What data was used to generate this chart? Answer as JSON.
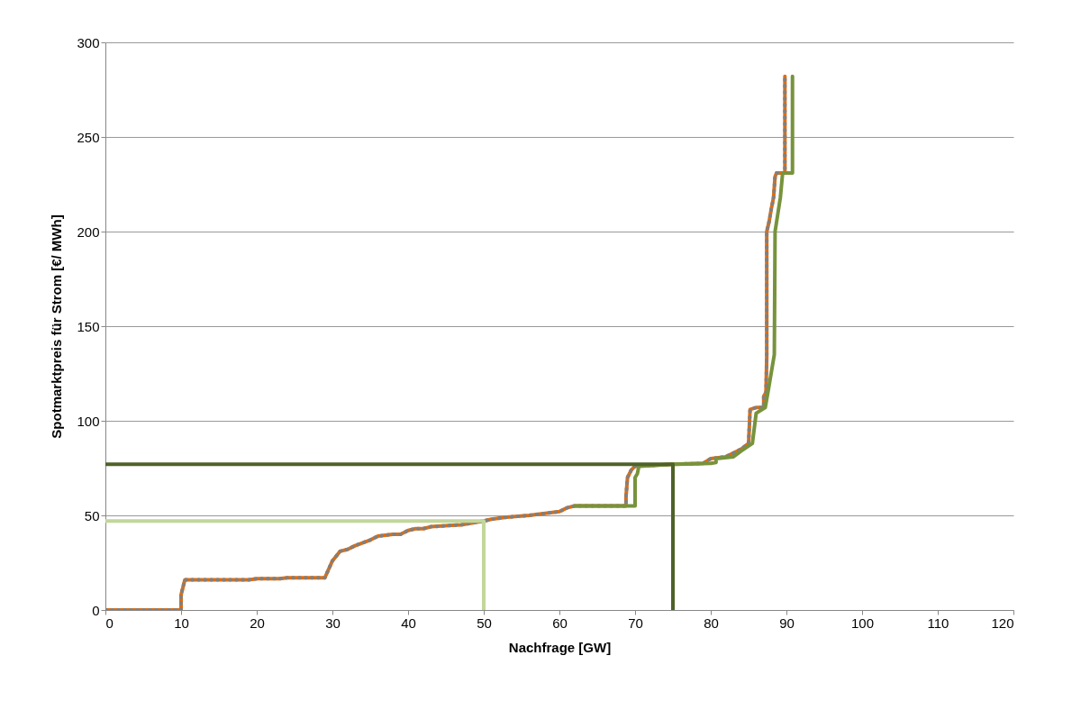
{
  "chart_data": {
    "type": "line",
    "xlabel": "Nachfrage [GW]",
    "ylabel": "Spotmarktpreis  für Strom [€/ MWh]",
    "xlim": [
      0,
      120
    ],
    "xticks": [
      0,
      10,
      20,
      30,
      40,
      50,
      60,
      70,
      80,
      90,
      100,
      110,
      120
    ],
    "ylim": [
      0,
      300
    ],
    "yticks": [
      0,
      50,
      100,
      150,
      200,
      250,
      300
    ],
    "grid": "y",
    "series": [
      {
        "color": "#e46c0a",
        "line_style": "solid",
        "x": [
          0,
          10,
          10,
          10.5,
          19,
          20,
          23,
          24,
          29,
          30,
          31,
          32,
          33,
          35,
          36,
          38,
          39,
          40,
          41,
          42,
          43,
          47,
          50,
          51,
          53,
          56,
          60,
          61,
          62,
          68.8,
          68.8,
          69,
          69.5,
          70,
          75,
          79,
          80,
          82,
          83,
          84,
          85,
          85.2,
          86,
          87,
          87,
          87.3,
          87.4,
          87.4,
          87.7,
          88,
          88.3,
          88.5,
          88.7,
          89.8,
          89.8
        ],
        "values": [
          0,
          0,
          8,
          16,
          16,
          16.5,
          16.5,
          17,
          17,
          26,
          31,
          32,
          34,
          37,
          39,
          40,
          40,
          42,
          43,
          43,
          44,
          45,
          47,
          48,
          49,
          50,
          52,
          54,
          55,
          55,
          60,
          70,
          74,
          76,
          77,
          77.5,
          80,
          81,
          83,
          85,
          88,
          106,
          107,
          107,
          113,
          115,
          134,
          200,
          205,
          212,
          218,
          229,
          231,
          231,
          282
        ]
      },
      {
        "color": "#808080",
        "line_style": "dotted",
        "x": [
          0,
          10,
          10,
          10.5,
          19,
          20,
          23,
          24,
          29,
          30,
          31,
          32,
          33,
          35,
          36,
          38,
          39,
          40,
          41,
          42,
          43,
          47,
          50,
          51,
          53,
          56,
          60,
          61,
          62,
          68.8,
          68.8,
          69,
          69.5,
          70,
          75,
          79,
          80,
          82,
          83,
          84,
          85,
          85.2,
          86,
          87,
          87,
          87.3,
          87.4,
          87.4,
          87.7,
          88,
          88.3,
          88.5,
          88.7,
          89.8,
          89.8
        ],
        "values": [
          0,
          0,
          8,
          16,
          16,
          16.5,
          16.5,
          17,
          17,
          26,
          31,
          32,
          34,
          37,
          39,
          40,
          40,
          42,
          43,
          43,
          44,
          45,
          47,
          48,
          49,
          50,
          52,
          54,
          55,
          55,
          60,
          70,
          74,
          76,
          77,
          77.5,
          80,
          81,
          83,
          85,
          88,
          106,
          107,
          107,
          113,
          115,
          134,
          200,
          205,
          212,
          218,
          229,
          231,
          231,
          282
        ]
      },
      {
        "color": "#77933c",
        "line_style": "solid",
        "x": [
          62,
          70,
          70,
          70.3,
          70.5,
          75,
          80,
          80.7,
          80.7,
          83,
          84,
          85.5,
          86,
          87.2,
          87.6,
          88.4,
          88.5,
          89.2,
          89.5,
          90.8,
          90.8
        ],
        "values": [
          55,
          55,
          70,
          72,
          76,
          77,
          77.5,
          78,
          80,
          81,
          84,
          88,
          104,
          107,
          116,
          135,
          200,
          218,
          231,
          231,
          282
        ]
      },
      {
        "color": "#c3d69b",
        "line_style": "solid",
        "x": [
          0,
          50,
          50
        ],
        "values": [
          47,
          47,
          0
        ]
      },
      {
        "color": "#4f6228",
        "line_style": "solid",
        "x": [
          0,
          75,
          75
        ],
        "values": [
          77,
          77,
          0
        ]
      }
    ]
  }
}
